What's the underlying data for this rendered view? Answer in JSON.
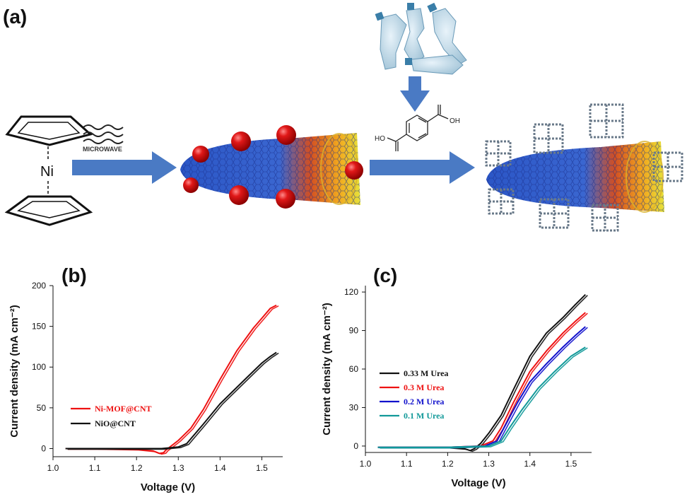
{
  "panels": {
    "a": "(a)",
    "b": "(b)",
    "c": "(c)"
  },
  "scheme": {
    "metal_symbol": "Ni",
    "microwave_label": "MICROWAVE",
    "oh_left": "HO",
    "oh_right": "OH",
    "arrow_color": "#4a7ac4",
    "np_color": "#cc1111"
  },
  "chart_data": [
    {
      "type": "line",
      "panel": "(b)",
      "xlabel": "Voltage (V)",
      "ylabel": "Current density (mA cm⁻²)",
      "xlim": [
        1.0,
        1.55
      ],
      "ylim": [
        -10,
        200
      ],
      "xticks": [
        "1.0",
        "1.1",
        "1.2",
        "1.3",
        "1.4",
        "1.5"
      ],
      "yticks": [
        "0",
        "50",
        "100",
        "150",
        "200"
      ],
      "legend_position": "lower-left",
      "series": [
        {
          "name": "Ni-MOF@CNT",
          "color": "#ee1111",
          "x": [
            1.03,
            1.1,
            1.2,
            1.24,
            1.255,
            1.265,
            1.27,
            1.28,
            1.3,
            1.33,
            1.36,
            1.4,
            1.44,
            1.48,
            1.5,
            1.52,
            1.535
          ],
          "y": [
            0,
            0,
            -1,
            -3,
            -6,
            -5,
            -2,
            2,
            10,
            25,
            48,
            85,
            120,
            148,
            160,
            172,
            176
          ]
        },
        {
          "name": "NiO@CNT",
          "color": "#111111",
          "x": [
            1.03,
            1.1,
            1.2,
            1.26,
            1.3,
            1.32,
            1.33,
            1.36,
            1.4,
            1.44,
            1.48,
            1.5,
            1.52,
            1.535
          ],
          "y": [
            0,
            0,
            0,
            0,
            2,
            6,
            12,
            30,
            55,
            75,
            95,
            105,
            113,
            118
          ]
        }
      ]
    },
    {
      "type": "line",
      "panel": "(c)",
      "xlabel": "Voltage (V)",
      "ylabel": "Current density (mA cm⁻²)",
      "xlim": [
        1.0,
        1.55
      ],
      "ylim": [
        -5,
        125
      ],
      "xticks": [
        "1.0",
        "1.1",
        "1.2",
        "1.3",
        "1.4",
        "1.5"
      ],
      "yticks": [
        "0",
        "30",
        "60",
        "90",
        "120"
      ],
      "legend_position": "middle-left",
      "series": [
        {
          "name": "0.33 M Urea",
          "color": "#111111",
          "x": [
            1.03,
            1.1,
            1.2,
            1.24,
            1.255,
            1.265,
            1.28,
            1.3,
            1.33,
            1.36,
            1.4,
            1.44,
            1.48,
            1.51,
            1.535
          ],
          "y": [
            -1,
            -1,
            -1,
            -2,
            -3.5,
            -2,
            2,
            10,
            24,
            44,
            70,
            88,
            100,
            110,
            118
          ]
        },
        {
          "name": "0.3 M Urea",
          "color": "#ee1111",
          "x": [
            1.03,
            1.1,
            1.2,
            1.28,
            1.31,
            1.33,
            1.36,
            1.4,
            1.44,
            1.48,
            1.51,
            1.535
          ],
          "y": [
            -1,
            -1,
            -1,
            0,
            4,
            14,
            34,
            58,
            74,
            88,
            97,
            104
          ]
        },
        {
          "name": "0.2 M Urea",
          "color": "#1111cc",
          "x": [
            1.03,
            1.1,
            1.2,
            1.29,
            1.32,
            1.34,
            1.37,
            1.4,
            1.44,
            1.48,
            1.51,
            1.535
          ],
          "y": [
            -1,
            -1,
            -1,
            0,
            4,
            16,
            34,
            50,
            64,
            77,
            86,
            93
          ]
        },
        {
          "name": "0.1 M Urea",
          "color": "#119999",
          "x": [
            1.03,
            1.1,
            1.2,
            1.3,
            1.33,
            1.35,
            1.38,
            1.42,
            1.46,
            1.5,
            1.535
          ],
          "y": [
            -1,
            -1,
            -1,
            0,
            4,
            14,
            28,
            45,
            58,
            70,
            77
          ]
        }
      ]
    }
  ]
}
